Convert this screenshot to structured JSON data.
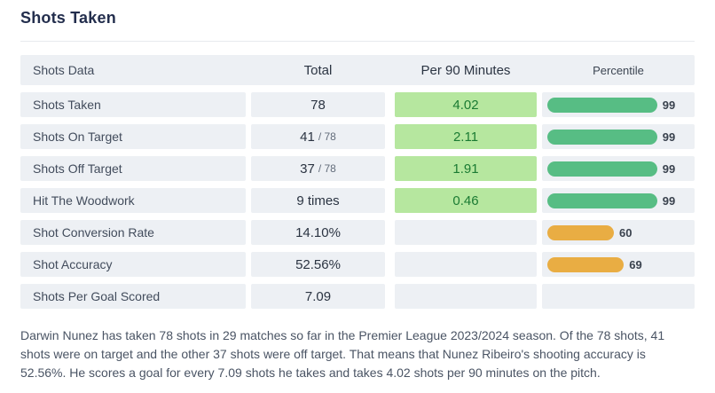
{
  "page": {
    "title": "Shots Taken",
    "summary": "Darwin Nunez has taken 78 shots in 29 matches so far in the Premier League 2023/2024 season. Of the 78 shots, 41 shots were on target and the other 37 shots were off target. That means that Nunez Ribeiro's shooting accuracy is 52.56%. He scores a goal for every 7.09 shots he takes and takes 4.02 shots per 90 minutes on the pitch."
  },
  "colors": {
    "bar_green": "#57bd84",
    "bar_orange": "#e9ad43",
    "per90_highlight_bg": "#b6e79f",
    "per90_highlight_text": "#1b7b33",
    "cell_bg": "#edf0f4",
    "title_text": "#232e4d"
  },
  "table": {
    "headers": [
      "Shots Data",
      "Total",
      "Per 90 Minutes",
      "Percentile"
    ],
    "rows": [
      {
        "label": "Shots Taken",
        "total": "78",
        "total_suffix": "",
        "per90": "4.02",
        "percentile": 99,
        "bar_color": "bar_green"
      },
      {
        "label": "Shots On Target",
        "total": "41",
        "total_suffix": "/ 78",
        "per90": "2.11",
        "percentile": 99,
        "bar_color": "bar_green"
      },
      {
        "label": "Shots Off Target",
        "total": "37",
        "total_suffix": "/ 78",
        "per90": "1.91",
        "percentile": 99,
        "bar_color": "bar_green"
      },
      {
        "label": "Hit The Woodwork",
        "total": "9 times",
        "total_suffix": "",
        "per90": "0.46",
        "percentile": 99,
        "bar_color": "bar_green"
      },
      {
        "label": "Shot Conversion Rate",
        "total": "14.10%",
        "total_suffix": "",
        "per90": "",
        "percentile": 60,
        "bar_color": "bar_orange"
      },
      {
        "label": "Shot Accuracy",
        "total": "52.56%",
        "total_suffix": "",
        "per90": "",
        "percentile": 69,
        "bar_color": "bar_orange"
      },
      {
        "label": "Shots Per Goal Scored",
        "total": "7.09",
        "total_suffix": "",
        "per90": "",
        "percentile": null,
        "bar_color": null
      }
    ]
  },
  "chart_data": {
    "type": "table",
    "columns": [
      "Shots Data",
      "Total",
      "Per 90 Minutes",
      "Percentile"
    ],
    "rows": [
      [
        "Shots Taken",
        "78",
        4.02,
        99
      ],
      [
        "Shots On Target",
        "41 / 78",
        2.11,
        99
      ],
      [
        "Shots Off Target",
        "37 / 78",
        1.91,
        99
      ],
      [
        "Hit The Woodwork",
        "9 times",
        0.46,
        99
      ],
      [
        "Shot Conversion Rate",
        "14.10%",
        null,
        60
      ],
      [
        "Shot Accuracy",
        "52.56%",
        null,
        69
      ],
      [
        "Shots Per Goal Scored",
        "7.09",
        null,
        null
      ]
    ]
  }
}
